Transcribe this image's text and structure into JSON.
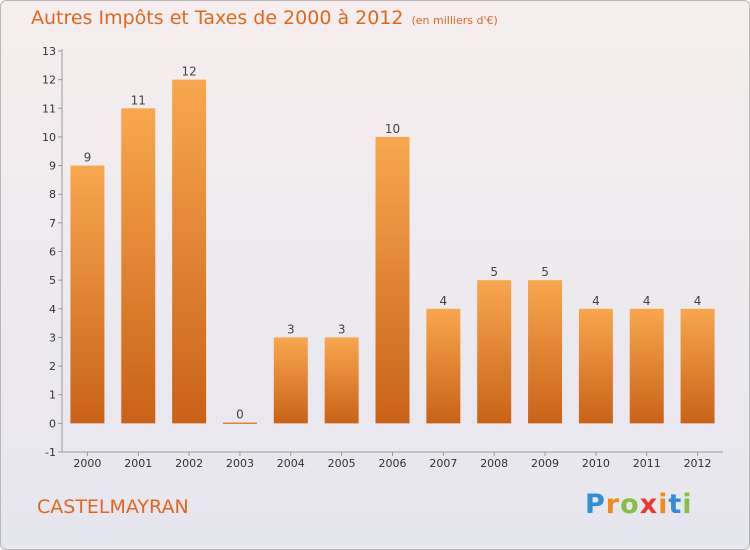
{
  "title": "Autres Impôts et Taxes de 2000 à 2012",
  "unit": "(en milliers d'€)",
  "commune": "CASTELMAYRAN",
  "brand": {
    "letters": [
      "P",
      "r",
      "o",
      "x",
      "i",
      "t",
      "i"
    ],
    "colors": [
      "#2e8fd6",
      "#ef8a1e",
      "#86c046",
      "#e43c2e",
      "#ef8a1e",
      "#2e8fd6",
      "#86c046"
    ]
  },
  "colors": {
    "bar_top": "#f8a74f",
    "bar_bottom": "#c96218",
    "text": "#e0671e"
  },
  "chart_data": {
    "type": "bar",
    "categories": [
      "2000",
      "2001",
      "2002",
      "2003",
      "2004",
      "2005",
      "2006",
      "2007",
      "2008",
      "2009",
      "2010",
      "2011",
      "2012"
    ],
    "values": [
      9,
      11,
      12,
      0,
      3,
      3,
      10,
      4,
      5,
      5,
      4,
      4,
      4
    ],
    "data_labels": [
      "9",
      "11",
      "12",
      "0",
      "3",
      "3",
      "10",
      "4",
      "5",
      "5",
      "4",
      "4",
      "4"
    ],
    "title": "Autres Impôts et Taxes de 2000 à 2012",
    "ylabel": "",
    "xlabel": "",
    "ylim": [
      -1,
      13
    ],
    "yticks": [
      -1,
      0,
      1,
      2,
      3,
      4,
      5,
      6,
      7,
      8,
      9,
      10,
      11,
      12,
      13
    ],
    "ytick_labels": [
      "-1",
      "0",
      "1",
      "2",
      "3",
      "4",
      "5",
      "6",
      "7",
      "8",
      "9",
      "10",
      "11",
      "12",
      "13"
    ],
    "grid": false,
    "legend": "none"
  }
}
